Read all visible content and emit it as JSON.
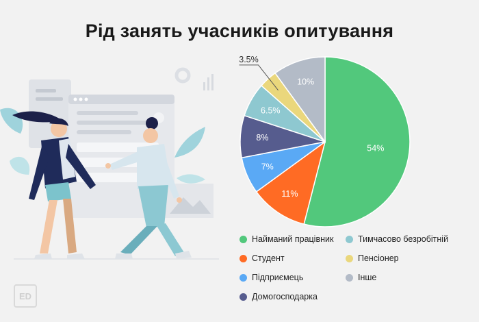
{
  "title": "Рід занять учасників опитування",
  "logo_text": "ED",
  "chart_data": {
    "type": "pie",
    "title": "Рід занять учасників опитування",
    "start": "top, clockwise",
    "slices": [
      {
        "label": "Найманий працівник",
        "value": 54,
        "display": "54%",
        "color": "#52c87c"
      },
      {
        "label": "Студент",
        "value": 11,
        "display": "11%",
        "color": "#ff6b24"
      },
      {
        "label": "Підприємець",
        "value": 7,
        "display": "7%",
        "color": "#5aa9f5"
      },
      {
        "label": "Домогосподарка",
        "value": 8,
        "display": "8%",
        "color": "#565c8e"
      },
      {
        "label": "Тимчасово безробітній",
        "value": 6.5,
        "display": "6.5%",
        "color": "#8ec8d0"
      },
      {
        "label": "Пенсіонер",
        "value": 3.5,
        "display": "3.5%",
        "color": "#ead77c"
      },
      {
        "label": "Інше",
        "value": 10,
        "display": "10%",
        "color": "#b3bbc7"
      }
    ],
    "legend": [
      {
        "label": "Найманий працівник",
        "color": "#52c87c"
      },
      {
        "label": "Тимчасово безробітній",
        "color": "#8ec8d0"
      },
      {
        "label": "Студент",
        "color": "#ff6b24"
      },
      {
        "label": "Пенсіонер",
        "color": "#ead77c"
      },
      {
        "label": "Підприємець",
        "color": "#5aa9f5"
      },
      {
        "label": "Інше",
        "color": "#b3bbc7"
      },
      {
        "label": "Домогосподарка",
        "color": "#565c8e"
      }
    ],
    "legend_position": "bottom"
  }
}
